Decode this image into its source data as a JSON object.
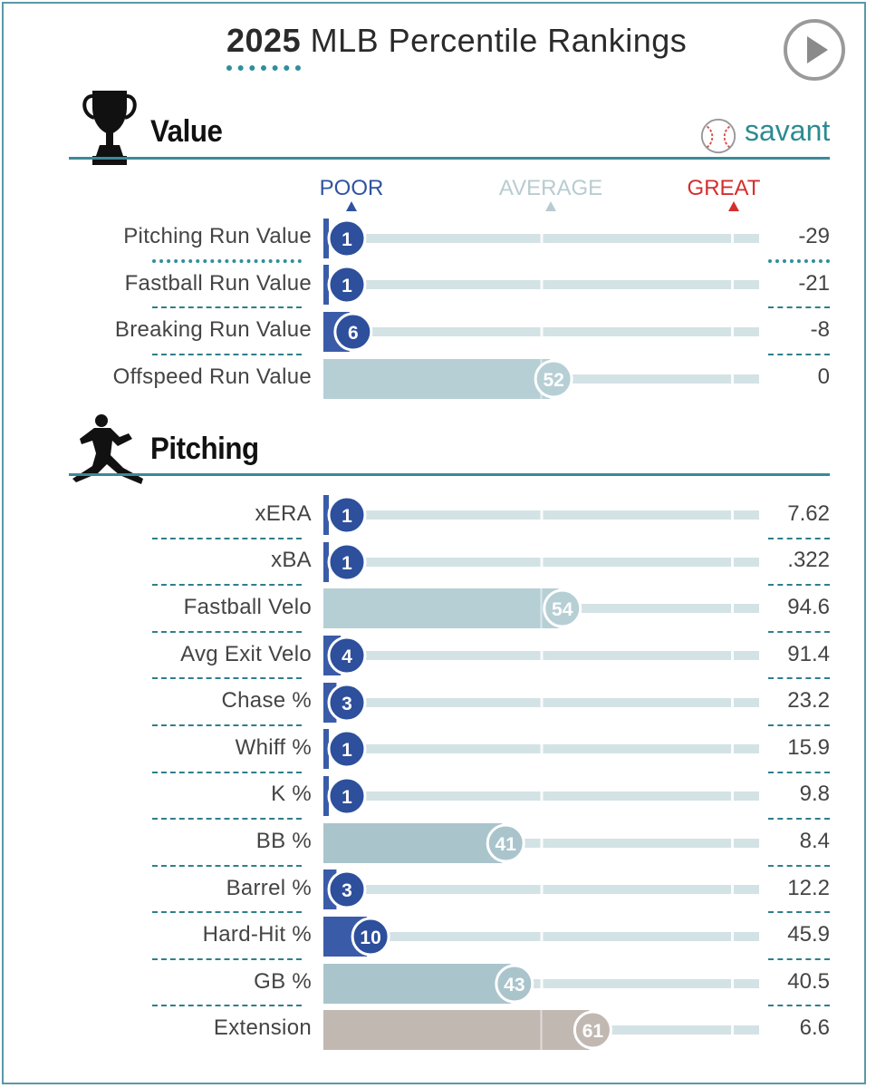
{
  "header": {
    "title_year": "2025",
    "title_rest": "MLB Percentile Rankings",
    "play_button": "play-icon"
  },
  "scale": {
    "poor": "POOR",
    "average": "AVERAGE",
    "great": "GREAT"
  },
  "logo": {
    "name": "savant",
    "icon": "baseball-icon"
  },
  "colors": {
    "poor_blue": "#3a5ca8",
    "track": "#c8dbdf",
    "average_fill": "#b6cfd5",
    "great_tan": "#c2b8b2",
    "accent_teal": "#3c8a97",
    "great_red": "#d32f2f"
  },
  "chart_data": [
    {
      "type": "bar",
      "title": "Value",
      "title_icon": "trophy-icon",
      "xlim": [
        0,
        100
      ],
      "categories": [
        "Pitching Run Value",
        "Fastball Run Value",
        "Breaking Run Value",
        "Offspeed Run Value"
      ],
      "percentiles": [
        1,
        1,
        6,
        52
      ],
      "display_values": [
        "-29",
        "-21",
        "-8",
        "0"
      ]
    },
    {
      "type": "bar",
      "title": "Pitching",
      "title_icon": "pitcher-icon",
      "xlim": [
        0,
        100
      ],
      "categories": [
        "xERA",
        "xBA",
        "Fastball Velo",
        "Avg Exit Velo",
        "Chase %",
        "Whiff %",
        "K %",
        "BB %",
        "Barrel %",
        "Hard-Hit %",
        "GB %",
        "Extension"
      ],
      "percentiles": [
        1,
        1,
        54,
        4,
        3,
        1,
        1,
        41,
        3,
        10,
        43,
        61
      ],
      "display_values": [
        "7.62",
        ".322",
        "94.6",
        "91.4",
        "23.2",
        "15.9",
        "9.8",
        "8.4",
        "12.2",
        "45.9",
        "40.5",
        "6.6"
      ]
    }
  ]
}
